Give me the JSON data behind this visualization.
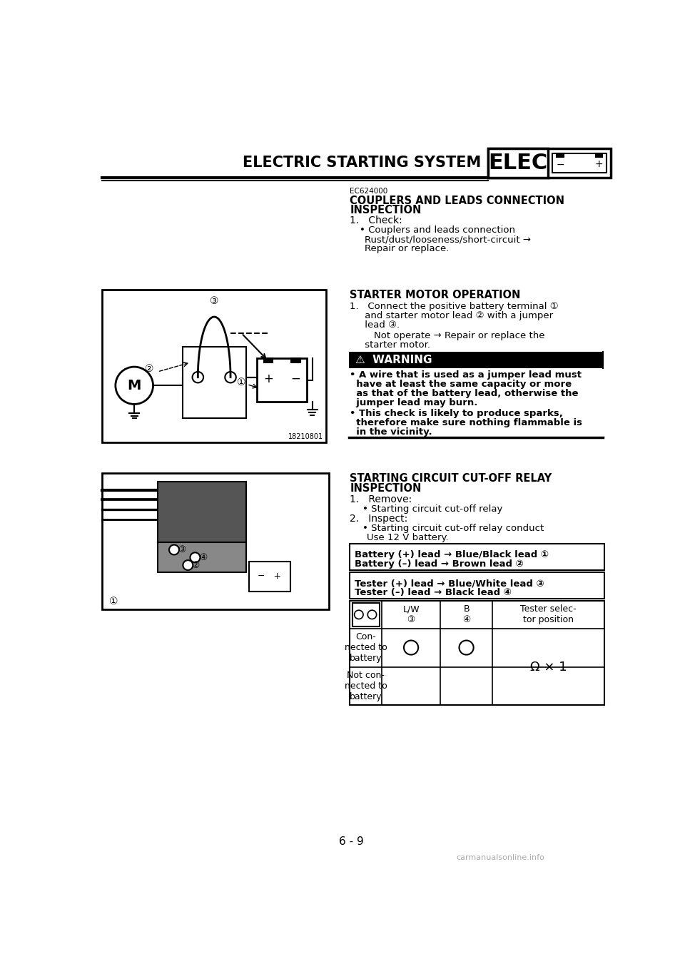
{
  "page_title": "ELECTRIC STARTING SYSTEM",
  "elec_label": "ELEC",
  "page_number": "6 - 9",
  "watermark": "carmanualsonline.info",
  "section1_code": "EC624000",
  "section2_title": "STARTER MOTOR OPERATION",
  "warning_label": "⚠  WARNING",
  "section3_title_line1": "STARTING CIRCUIT CUT-OFF RELAY",
  "section3_title_line2": "INSPECTION",
  "table1_line1": "Battery (+) lead → Blue/Black lead ①",
  "table1_line2": "Battery (–) lead → Brown lead ②",
  "table2_line1": "Tester (+) lead → Blue/White lead ③",
  "table2_line2": "Tester (–) lead → Black lead ④",
  "table3_col1": "L/W",
  "table3_col1b": "③",
  "table3_col2": "B",
  "table3_col2b": "④",
  "table3_col3": "Tester selec-\ntor position",
  "table3_row1_label": "Con-\nnected to\nbattery",
  "table3_row2_label": "Not con-\nnected to\nbattery",
  "table3_omega": "Ω × 1",
  "img1_label": "18210801",
  "bg_color": "#ffffff",
  "text_color": "#000000"
}
